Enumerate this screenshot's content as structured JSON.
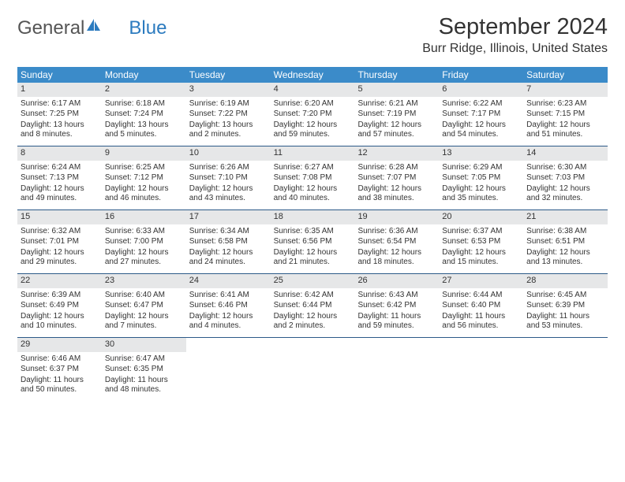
{
  "logo": {
    "text1": "General",
    "text2": "Blue"
  },
  "title": {
    "month": "September 2024",
    "location": "Burr Ridge, Illinois, United States"
  },
  "colors": {
    "header_bg": "#3b8bc9",
    "header_text": "#ffffff",
    "daynum_bg": "#e6e7e8",
    "week_border": "#2c5a88",
    "logo_blue": "#2c7bbf",
    "body_text": "#333333"
  },
  "weekdays": [
    "Sunday",
    "Monday",
    "Tuesday",
    "Wednesday",
    "Thursday",
    "Friday",
    "Saturday"
  ],
  "weeks": [
    [
      {
        "n": "1",
        "sunrise": "Sunrise: 6:17 AM",
        "sunset": "Sunset: 7:25 PM",
        "daylight": "Daylight: 13 hours and 8 minutes."
      },
      {
        "n": "2",
        "sunrise": "Sunrise: 6:18 AM",
        "sunset": "Sunset: 7:24 PM",
        "daylight": "Daylight: 13 hours and 5 minutes."
      },
      {
        "n": "3",
        "sunrise": "Sunrise: 6:19 AM",
        "sunset": "Sunset: 7:22 PM",
        "daylight": "Daylight: 13 hours and 2 minutes."
      },
      {
        "n": "4",
        "sunrise": "Sunrise: 6:20 AM",
        "sunset": "Sunset: 7:20 PM",
        "daylight": "Daylight: 12 hours and 59 minutes."
      },
      {
        "n": "5",
        "sunrise": "Sunrise: 6:21 AM",
        "sunset": "Sunset: 7:19 PM",
        "daylight": "Daylight: 12 hours and 57 minutes."
      },
      {
        "n": "6",
        "sunrise": "Sunrise: 6:22 AM",
        "sunset": "Sunset: 7:17 PM",
        "daylight": "Daylight: 12 hours and 54 minutes."
      },
      {
        "n": "7",
        "sunrise": "Sunrise: 6:23 AM",
        "sunset": "Sunset: 7:15 PM",
        "daylight": "Daylight: 12 hours and 51 minutes."
      }
    ],
    [
      {
        "n": "8",
        "sunrise": "Sunrise: 6:24 AM",
        "sunset": "Sunset: 7:13 PM",
        "daylight": "Daylight: 12 hours and 49 minutes."
      },
      {
        "n": "9",
        "sunrise": "Sunrise: 6:25 AM",
        "sunset": "Sunset: 7:12 PM",
        "daylight": "Daylight: 12 hours and 46 minutes."
      },
      {
        "n": "10",
        "sunrise": "Sunrise: 6:26 AM",
        "sunset": "Sunset: 7:10 PM",
        "daylight": "Daylight: 12 hours and 43 minutes."
      },
      {
        "n": "11",
        "sunrise": "Sunrise: 6:27 AM",
        "sunset": "Sunset: 7:08 PM",
        "daylight": "Daylight: 12 hours and 40 minutes."
      },
      {
        "n": "12",
        "sunrise": "Sunrise: 6:28 AM",
        "sunset": "Sunset: 7:07 PM",
        "daylight": "Daylight: 12 hours and 38 minutes."
      },
      {
        "n": "13",
        "sunrise": "Sunrise: 6:29 AM",
        "sunset": "Sunset: 7:05 PM",
        "daylight": "Daylight: 12 hours and 35 minutes."
      },
      {
        "n": "14",
        "sunrise": "Sunrise: 6:30 AM",
        "sunset": "Sunset: 7:03 PM",
        "daylight": "Daylight: 12 hours and 32 minutes."
      }
    ],
    [
      {
        "n": "15",
        "sunrise": "Sunrise: 6:32 AM",
        "sunset": "Sunset: 7:01 PM",
        "daylight": "Daylight: 12 hours and 29 minutes."
      },
      {
        "n": "16",
        "sunrise": "Sunrise: 6:33 AM",
        "sunset": "Sunset: 7:00 PM",
        "daylight": "Daylight: 12 hours and 27 minutes."
      },
      {
        "n": "17",
        "sunrise": "Sunrise: 6:34 AM",
        "sunset": "Sunset: 6:58 PM",
        "daylight": "Daylight: 12 hours and 24 minutes."
      },
      {
        "n": "18",
        "sunrise": "Sunrise: 6:35 AM",
        "sunset": "Sunset: 6:56 PM",
        "daylight": "Daylight: 12 hours and 21 minutes."
      },
      {
        "n": "19",
        "sunrise": "Sunrise: 6:36 AM",
        "sunset": "Sunset: 6:54 PM",
        "daylight": "Daylight: 12 hours and 18 minutes."
      },
      {
        "n": "20",
        "sunrise": "Sunrise: 6:37 AM",
        "sunset": "Sunset: 6:53 PM",
        "daylight": "Daylight: 12 hours and 15 minutes."
      },
      {
        "n": "21",
        "sunrise": "Sunrise: 6:38 AM",
        "sunset": "Sunset: 6:51 PM",
        "daylight": "Daylight: 12 hours and 13 minutes."
      }
    ],
    [
      {
        "n": "22",
        "sunrise": "Sunrise: 6:39 AM",
        "sunset": "Sunset: 6:49 PM",
        "daylight": "Daylight: 12 hours and 10 minutes."
      },
      {
        "n": "23",
        "sunrise": "Sunrise: 6:40 AM",
        "sunset": "Sunset: 6:47 PM",
        "daylight": "Daylight: 12 hours and 7 minutes."
      },
      {
        "n": "24",
        "sunrise": "Sunrise: 6:41 AM",
        "sunset": "Sunset: 6:46 PM",
        "daylight": "Daylight: 12 hours and 4 minutes."
      },
      {
        "n": "25",
        "sunrise": "Sunrise: 6:42 AM",
        "sunset": "Sunset: 6:44 PM",
        "daylight": "Daylight: 12 hours and 2 minutes."
      },
      {
        "n": "26",
        "sunrise": "Sunrise: 6:43 AM",
        "sunset": "Sunset: 6:42 PM",
        "daylight": "Daylight: 11 hours and 59 minutes."
      },
      {
        "n": "27",
        "sunrise": "Sunrise: 6:44 AM",
        "sunset": "Sunset: 6:40 PM",
        "daylight": "Daylight: 11 hours and 56 minutes."
      },
      {
        "n": "28",
        "sunrise": "Sunrise: 6:45 AM",
        "sunset": "Sunset: 6:39 PM",
        "daylight": "Daylight: 11 hours and 53 minutes."
      }
    ],
    [
      {
        "n": "29",
        "sunrise": "Sunrise: 6:46 AM",
        "sunset": "Sunset: 6:37 PM",
        "daylight": "Daylight: 11 hours and 50 minutes."
      },
      {
        "n": "30",
        "sunrise": "Sunrise: 6:47 AM",
        "sunset": "Sunset: 6:35 PM",
        "daylight": "Daylight: 11 hours and 48 minutes."
      },
      null,
      null,
      null,
      null,
      null
    ]
  ]
}
